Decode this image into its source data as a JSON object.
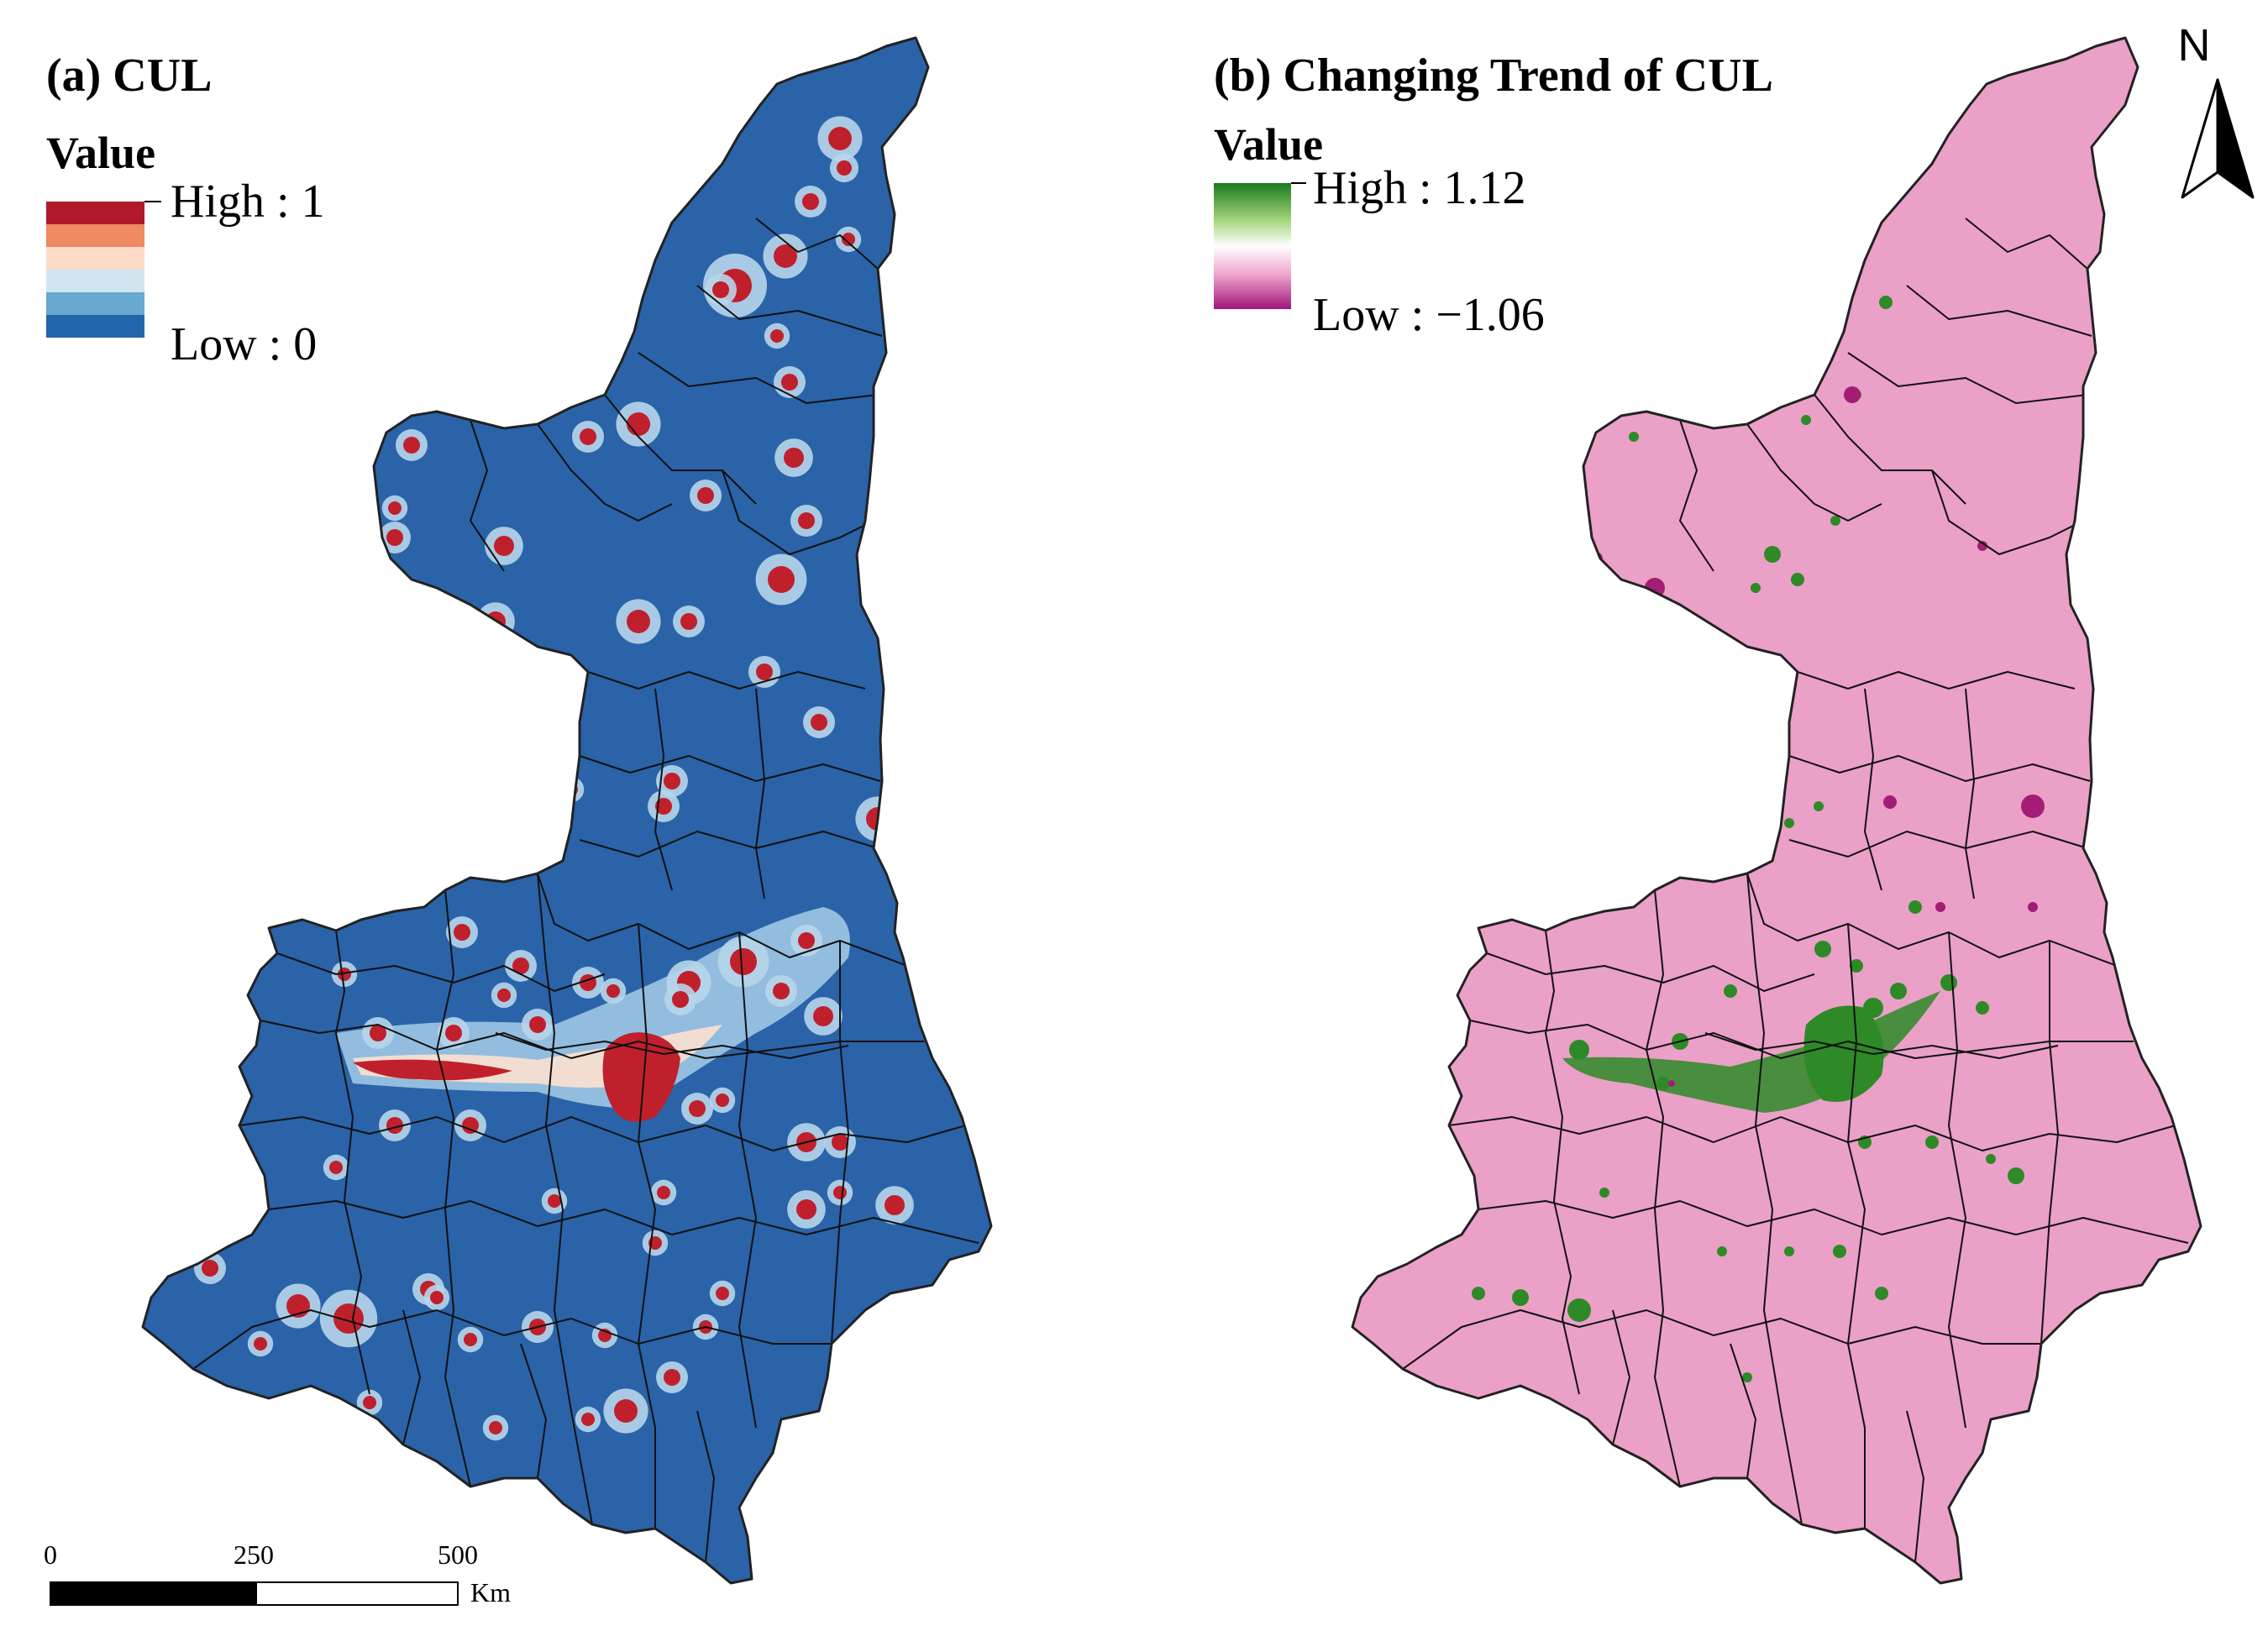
{
  "panel_a": {
    "title": "(a) CUL",
    "legend": {
      "title": "Value",
      "high_label": "High : 1",
      "low_label": "Low : 0",
      "colors": [
        "#b2182b",
        "#ef8a62",
        "#fddbc7",
        "#d1e5f0",
        "#67a9cf",
        "#2166ac"
      ]
    },
    "base_color": "#2a63a8",
    "hotspot_color": "#c0202c"
  },
  "panel_b": {
    "title": "(b) Changing Trend of CUL",
    "legend": {
      "title": "Value",
      "high_label": "High : 1.12",
      "low_label": "Low : −1.06",
      "colors": [
        "#1b7a1b",
        "#7fbf4a",
        "#e6f3d8",
        "#f7e2ef",
        "#e07cb6",
        "#a0157a"
      ]
    },
    "base_color": "#eba0c8",
    "increase_color": "#2d8a26",
    "decrease_color": "#a31d75"
  },
  "north_arrow": {
    "label": "N"
  },
  "scale_bar": {
    "ticks": [
      "0",
      "250",
      "500"
    ],
    "unit": "Km"
  }
}
